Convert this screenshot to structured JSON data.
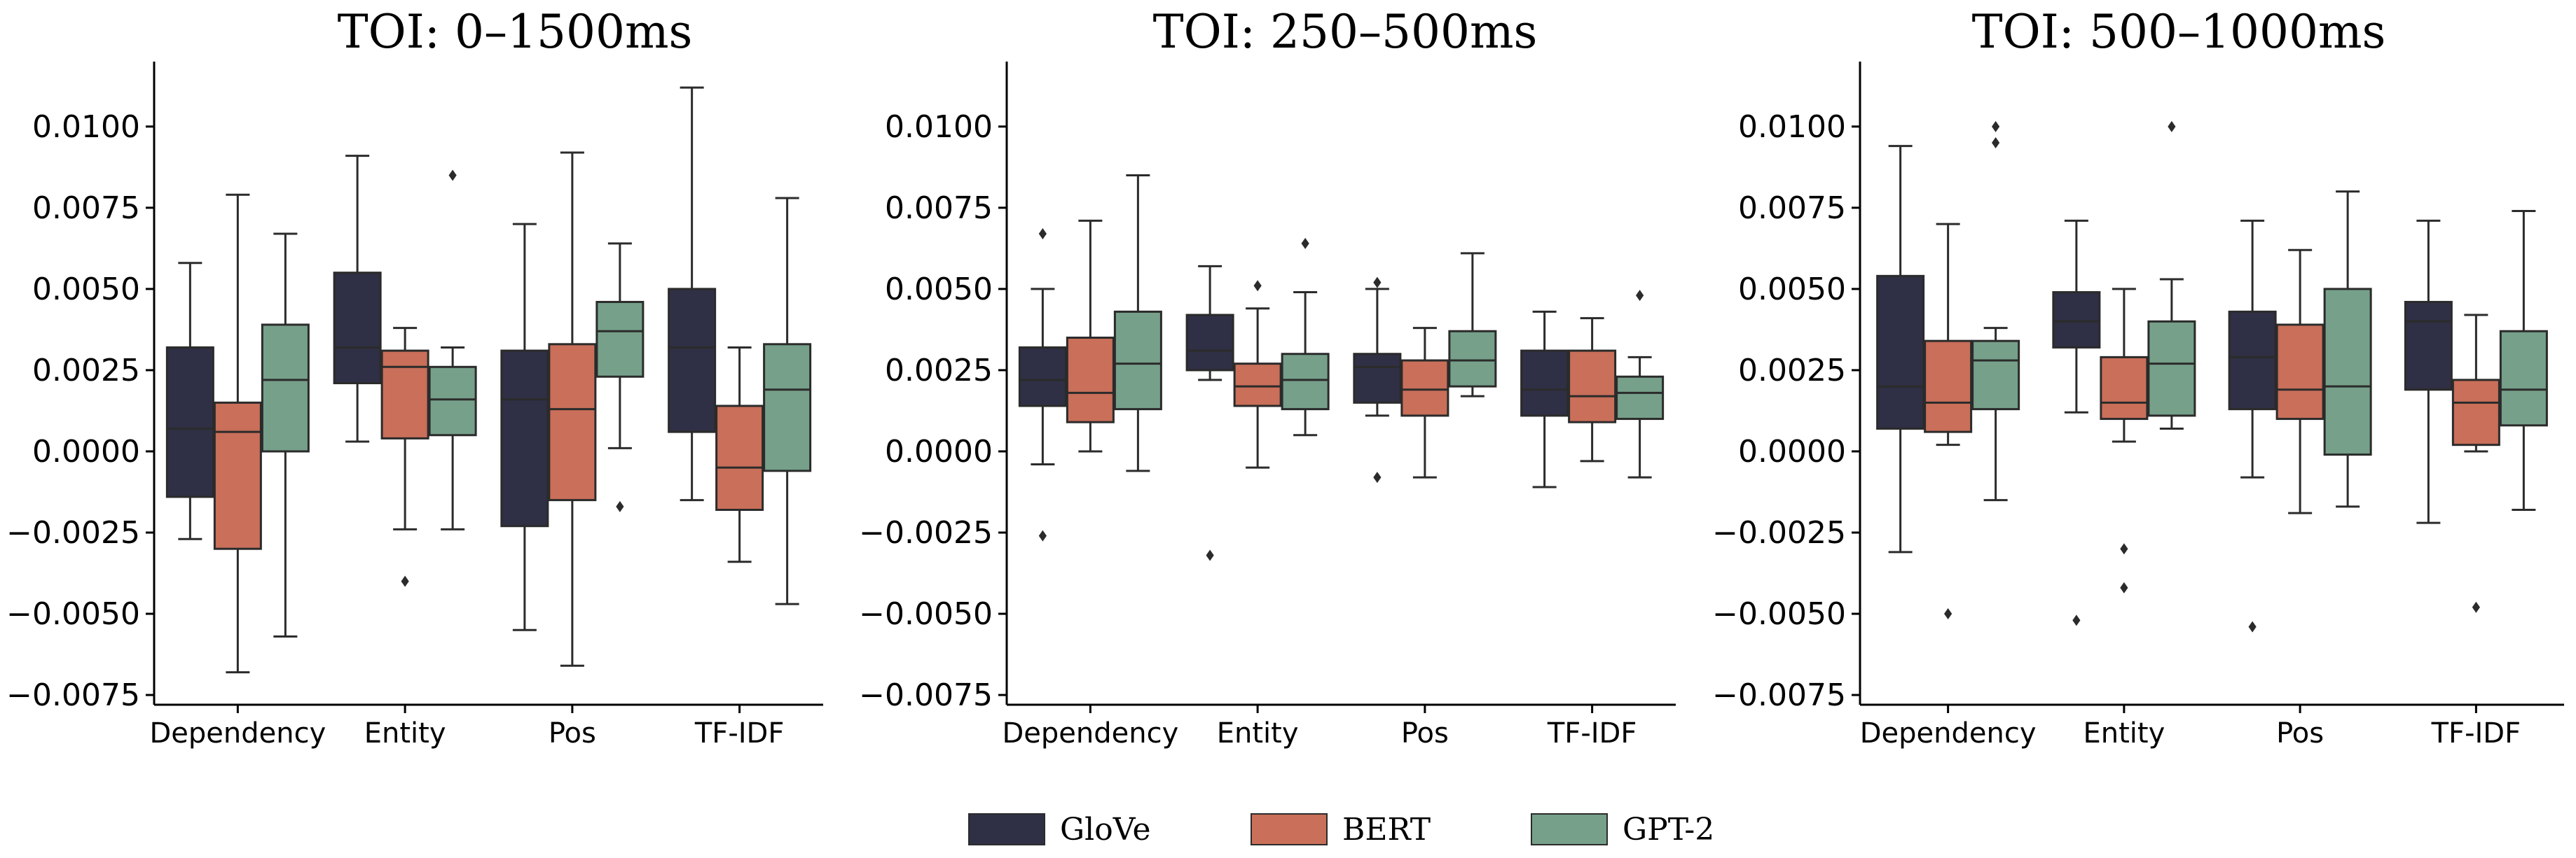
{
  "colors": {
    "GloVe": "#2f3045",
    "BERT": "#c96f5a",
    "GPT-2": "#76a08a",
    "line": "#2b2b2b"
  },
  "legend": [
    {
      "label": "GloVe"
    },
    {
      "label": "BERT"
    },
    {
      "label": "GPT-2"
    }
  ],
  "chart_data": [
    {
      "type": "boxplot",
      "title": "TOI: 0–1500ms",
      "categories": [
        "Dependency",
        "Entity",
        "Pos",
        "TF-IDF"
      ],
      "ylim": [
        -0.0078,
        0.012
      ],
      "yticks": [
        0.01,
        0.0075,
        0.005,
        0.0025,
        0.0,
        -0.0025,
        -0.005,
        -0.0075
      ],
      "ytick_labels": [
        "0.0100",
        "0.0075",
        "0.0050",
        "0.0025",
        "0.0000",
        "−0.0025",
        "−0.0050",
        "−0.0075"
      ],
      "series": [
        {
          "name": "GloVe",
          "boxes": [
            {
              "whislo": -0.0027,
              "q1": -0.0014,
              "med": 0.0007,
              "q3": 0.0032,
              "whishi": 0.0058,
              "fliers": []
            },
            {
              "whislo": 0.0003,
              "q1": 0.0021,
              "med": 0.0032,
              "q3": 0.0055,
              "whishi": 0.0091,
              "fliers": []
            },
            {
              "whislo": -0.0055,
              "q1": -0.0023,
              "med": 0.0016,
              "q3": 0.0031,
              "whishi": 0.007,
              "fliers": []
            },
            {
              "whislo": -0.0015,
              "q1": 0.0006,
              "med": 0.0032,
              "q3": 0.005,
              "whishi": 0.0112,
              "fliers": []
            }
          ]
        },
        {
          "name": "BERT",
          "boxes": [
            {
              "whislo": -0.0068,
              "q1": -0.003,
              "med": 0.0006,
              "q3": 0.0015,
              "whishi": 0.0079,
              "fliers": []
            },
            {
              "whislo": -0.0024,
              "q1": 0.0004,
              "med": 0.0026,
              "q3": 0.0031,
              "whishi": 0.0038,
              "fliers": [
                -0.004
              ]
            },
            {
              "whislo": -0.0066,
              "q1": -0.0015,
              "med": 0.0013,
              "q3": 0.0033,
              "whishi": 0.0092,
              "fliers": []
            },
            {
              "whislo": -0.0034,
              "q1": -0.0018,
              "med": -0.0005,
              "q3": 0.0014,
              "whishi": 0.0032,
              "fliers": []
            }
          ]
        },
        {
          "name": "GPT-2",
          "boxes": [
            {
              "whislo": -0.0057,
              "q1": 0.0,
              "med": 0.0022,
              "q3": 0.0039,
              "whishi": 0.0067,
              "fliers": []
            },
            {
              "whislo": -0.0024,
              "q1": 0.0005,
              "med": 0.0016,
              "q3": 0.0026,
              "whishi": 0.0032,
              "fliers": [
                0.0085
              ]
            },
            {
              "whislo": 0.0001,
              "q1": 0.0023,
              "med": 0.0037,
              "q3": 0.0046,
              "whishi": 0.0064,
              "fliers": [
                -0.0017
              ]
            },
            {
              "whislo": -0.0047,
              "q1": -0.0006,
              "med": 0.0019,
              "q3": 0.0033,
              "whishi": 0.0078,
              "fliers": []
            }
          ]
        }
      ]
    },
    {
      "type": "boxplot",
      "title": "TOI: 250–500ms",
      "categories": [
        "Dependency",
        "Entity",
        "Pos",
        "TF-IDF"
      ],
      "ylim": [
        -0.0078,
        0.012
      ],
      "yticks": [
        0.01,
        0.0075,
        0.005,
        0.0025,
        0.0,
        -0.0025,
        -0.005,
        -0.0075
      ],
      "ytick_labels": [
        "0.0100",
        "0.0075",
        "0.0050",
        "0.0025",
        "0.0000",
        "−0.0025",
        "−0.0050",
        "−0.0075"
      ],
      "series": [
        {
          "name": "GloVe",
          "boxes": [
            {
              "whislo": -0.0004,
              "q1": 0.0014,
              "med": 0.0022,
              "q3": 0.0032,
              "whishi": 0.005,
              "fliers": [
                0.0067,
                -0.0026
              ]
            },
            {
              "whislo": 0.0022,
              "q1": 0.0025,
              "med": 0.0031,
              "q3": 0.0042,
              "whishi": 0.0057,
              "fliers": [
                -0.0032
              ]
            },
            {
              "whislo": 0.0011,
              "q1": 0.0015,
              "med": 0.0026,
              "q3": 0.003,
              "whishi": 0.005,
              "fliers": [
                0.0052,
                -0.0008
              ]
            },
            {
              "whislo": -0.0011,
              "q1": 0.0011,
              "med": 0.0019,
              "q3": 0.0031,
              "whishi": 0.0043,
              "fliers": []
            }
          ]
        },
        {
          "name": "BERT",
          "boxes": [
            {
              "whislo": 0.0,
              "q1": 0.0009,
              "med": 0.0018,
              "q3": 0.0035,
              "whishi": 0.0071,
              "fliers": []
            },
            {
              "whislo": -0.0005,
              "q1": 0.0014,
              "med": 0.002,
              "q3": 0.0027,
              "whishi": 0.0044,
              "fliers": [
                0.0051
              ]
            },
            {
              "whislo": -0.0008,
              "q1": 0.0011,
              "med": 0.0019,
              "q3": 0.0028,
              "whishi": 0.0038,
              "fliers": []
            },
            {
              "whislo": -0.0003,
              "q1": 0.0009,
              "med": 0.0017,
              "q3": 0.0031,
              "whishi": 0.0041,
              "fliers": []
            }
          ]
        },
        {
          "name": "GPT-2",
          "boxes": [
            {
              "whislo": -0.0006,
              "q1": 0.0013,
              "med": 0.0027,
              "q3": 0.0043,
              "whishi": 0.0085,
              "fliers": []
            },
            {
              "whislo": 0.0005,
              "q1": 0.0013,
              "med": 0.0022,
              "q3": 0.003,
              "whishi": 0.0049,
              "fliers": [
                0.0064
              ]
            },
            {
              "whislo": 0.0017,
              "q1": 0.002,
              "med": 0.0028,
              "q3": 0.0037,
              "whishi": 0.0061,
              "fliers": []
            },
            {
              "whislo": -0.0008,
              "q1": 0.001,
              "med": 0.0018,
              "q3": 0.0023,
              "whishi": 0.0029,
              "fliers": [
                0.0048
              ]
            }
          ]
        }
      ]
    },
    {
      "type": "boxplot",
      "title": "TOI: 500–1000ms",
      "categories": [
        "Dependency",
        "Entity",
        "Pos",
        "TF-IDF"
      ],
      "ylim": [
        -0.0078,
        0.012
      ],
      "yticks": [
        0.01,
        0.0075,
        0.005,
        0.0025,
        0.0,
        -0.0025,
        -0.005,
        -0.0075
      ],
      "ytick_labels": [
        "0.0100",
        "0.0075",
        "0.0050",
        "0.0025",
        "0.0000",
        "−0.0025",
        "−0.0050",
        "−0.0075"
      ],
      "series": [
        {
          "name": "GloVe",
          "boxes": [
            {
              "whislo": -0.0031,
              "q1": 0.0007,
              "med": 0.002,
              "q3": 0.0054,
              "whishi": 0.0094,
              "fliers": []
            },
            {
              "whislo": 0.0012,
              "q1": 0.0032,
              "med": 0.004,
              "q3": 0.0049,
              "whishi": 0.0071,
              "fliers": [
                -0.0052
              ]
            },
            {
              "whislo": -0.0008,
              "q1": 0.0013,
              "med": 0.0029,
              "q3": 0.0043,
              "whishi": 0.0071,
              "fliers": [
                -0.0054
              ]
            },
            {
              "whislo": -0.0022,
              "q1": 0.0019,
              "med": 0.004,
              "q3": 0.0046,
              "whishi": 0.0071,
              "fliers": []
            }
          ]
        },
        {
          "name": "BERT",
          "boxes": [
            {
              "whislo": 0.0002,
              "q1": 0.0006,
              "med": 0.0015,
              "q3": 0.0034,
              "whishi": 0.007,
              "fliers": [
                -0.005
              ]
            },
            {
              "whislo": 0.0003,
              "q1": 0.001,
              "med": 0.0015,
              "q3": 0.0029,
              "whishi": 0.005,
              "fliers": [
                -0.003,
                -0.0042
              ]
            },
            {
              "whislo": -0.0019,
              "q1": 0.001,
              "med": 0.0019,
              "q3": 0.0039,
              "whishi": 0.0062,
              "fliers": []
            },
            {
              "whislo": 0.0,
              "q1": 0.0002,
              "med": 0.0015,
              "q3": 0.0022,
              "whishi": 0.0042,
              "fliers": [
                -0.0048
              ]
            }
          ]
        },
        {
          "name": "GPT-2",
          "boxes": [
            {
              "whislo": -0.0015,
              "q1": 0.0013,
              "med": 0.0028,
              "q3": 0.0034,
              "whishi": 0.0038,
              "fliers": [
                0.01,
                0.0095
              ]
            },
            {
              "whislo": 0.0007,
              "q1": 0.0011,
              "med": 0.0027,
              "q3": 0.004,
              "whishi": 0.0053,
              "fliers": [
                0.01
              ]
            },
            {
              "whislo": -0.0017,
              "q1": -0.0001,
              "med": 0.002,
              "q3": 0.005,
              "whishi": 0.008,
              "fliers": []
            },
            {
              "whislo": -0.0018,
              "q1": 0.0008,
              "med": 0.0019,
              "q3": 0.0037,
              "whishi": 0.0074,
              "fliers": []
            }
          ]
        }
      ]
    }
  ]
}
